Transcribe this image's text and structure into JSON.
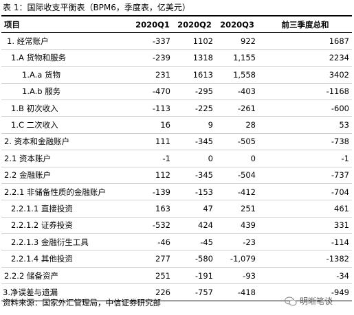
{
  "title": "表 1：国际收支平衡表（BPM6，季度表，亿美元）",
  "table": {
    "header": [
      "项目",
      "2020Q1",
      "2020Q2",
      "2020Q3",
      "前三季度总和"
    ],
    "rows": [
      [
        "1.  经常账户",
        "-337",
        "1102",
        "922",
        "1687"
      ],
      [
        "1.A  货物和服务",
        "-239",
        "1318",
        "1,155",
        "2234"
      ],
      [
        "1.A.a  货物",
        "231",
        "1613",
        "1,558",
        "3402"
      ],
      [
        "1.A.b  服务",
        "-470",
        "-295",
        "-403",
        "-1168"
      ],
      [
        "1.B  初次收入",
        "-113",
        "-225",
        "-261",
        "-600"
      ],
      [
        "1.C  二次收入",
        "16",
        "9",
        "28",
        "53"
      ],
      [
        "2.  资本和金融账户",
        "111",
        "-345",
        "-505",
        "-738"
      ],
      [
        "2.1  资本账户",
        "-1",
        "0",
        "0",
        "-1"
      ],
      [
        "2.2  金融账户",
        "112",
        "-345",
        "-504",
        "-737"
      ],
      [
        "2.2.1  非储备性质的金融账户",
        "-139",
        "-153",
        "-412",
        "-704"
      ],
      [
        "2.2.1.1  直接投资",
        "163",
        "47",
        "251",
        "461"
      ],
      [
        "2.2.1.2  证券投资",
        "-532",
        "424",
        "439",
        "331"
      ],
      [
        "2.2.1.3  金融衍生工具",
        "-46",
        "-45",
        "-23",
        "-114"
      ],
      [
        "2.2.1.4  其他投资",
        "277",
        "-580",
        "-1,079",
        "-1382"
      ],
      [
        "2.2.2  储备资产",
        "251",
        "-191",
        "-93",
        "-34"
      ],
      [
        "3.净误差与遗漏",
        "226",
        "-757",
        "-418",
        "-949"
      ]
    ]
  },
  "source": "资料来源：国家外汇管理局，中信证券研究部",
  "watermark": "明晰笔谈"
}
